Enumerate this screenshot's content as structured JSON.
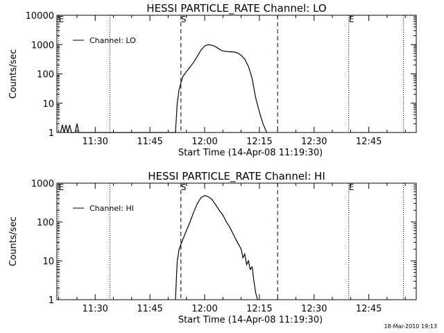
{
  "footer": {
    "timestamp": "18-Mar-2010 19:13"
  },
  "chart_data": [
    {
      "type": "line",
      "title": "HESSI PARTICLE_RATE Channel: LO",
      "xlabel": "Start Time (14-Apr-08 11:19:30)",
      "ylabel": "Counts/sec",
      "yscale": "log",
      "xlim": [
        "11:19:30",
        "12:58:00"
      ],
      "ylim": [
        1,
        10000
      ],
      "xticks": [
        "11:30",
        "11:45",
        "12:00",
        "12:15",
        "12:30",
        "12:45"
      ],
      "yticks": [
        "1",
        "10",
        "100",
        "1000",
        "10000"
      ],
      "grid": false,
      "legend": {
        "position": "top-left",
        "entries": [
          "Channel: LO"
        ]
      },
      "markers": [
        {
          "time": "11:20:00",
          "style": "dotted",
          "label": "E"
        },
        {
          "time": "11:34:00",
          "style": "dotted",
          "label": ""
        },
        {
          "time": "11:53:30",
          "style": "dashed",
          "label": "S"
        },
        {
          "time": "12:20:00",
          "style": "dashed",
          "label": ""
        },
        {
          "time": "12:39:30",
          "style": "dotted",
          "label": "E"
        },
        {
          "time": "12:54:30",
          "style": "dotted",
          "label": ""
        }
      ],
      "series": [
        {
          "name": "Channel: LO",
          "points": [
            [
              "11:20:30",
              1
            ],
            [
              "11:21:00",
              1.8
            ],
            [
              "11:21:30",
              1
            ],
            [
              "11:22:00",
              1.8
            ],
            [
              "11:22:30",
              1
            ],
            [
              "11:23:00",
              1.8
            ],
            [
              "11:23:30",
              1
            ],
            [
              "11:24:30",
              1
            ],
            [
              "11:25:00",
              2
            ],
            [
              "11:25:30",
              1
            ],
            [
              "11:52:00",
              1
            ],
            [
              "11:52:30",
              10
            ],
            [
              "11:53:00",
              30
            ],
            [
              "11:54:00",
              80
            ],
            [
              "11:55:00",
              120
            ],
            [
              "11:56:00",
              170
            ],
            [
              "11:57:00",
              250
            ],
            [
              "11:58:00",
              400
            ],
            [
              "11:59:00",
              650
            ],
            [
              "12:00:00",
              900
            ],
            [
              "12:01:00",
              1000
            ],
            [
              "12:02:00",
              950
            ],
            [
              "12:03:00",
              850
            ],
            [
              "12:04:00",
              700
            ],
            [
              "12:05:00",
              600
            ],
            [
              "12:06:00",
              580
            ],
            [
              "12:07:00",
              570
            ],
            [
              "12:08:00",
              560
            ],
            [
              "12:09:00",
              520
            ],
            [
              "12:10:00",
              430
            ],
            [
              "12:11:00",
              320
            ],
            [
              "12:12:00",
              180
            ],
            [
              "12:13:00",
              70
            ],
            [
              "12:14:00",
              15
            ],
            [
              "12:15:00",
              5
            ],
            [
              "12:16:00",
              2
            ],
            [
              "12:17:00",
              1
            ]
          ]
        }
      ]
    },
    {
      "type": "line",
      "title": "HESSI PARTICLE_RATE Channel: HI",
      "xlabel": "Start Time (14-Apr-08 11:19:30)",
      "ylabel": "Counts/sec",
      "yscale": "log",
      "xlim": [
        "11:19:30",
        "12:58:00"
      ],
      "ylim": [
        1,
        1000
      ],
      "xticks": [
        "11:30",
        "11:45",
        "12:00",
        "12:15",
        "12:30",
        "12:45"
      ],
      "yticks": [
        "1",
        "10",
        "100",
        "1000"
      ],
      "grid": false,
      "legend": {
        "position": "top-left",
        "entries": [
          "Channel: HI"
        ]
      },
      "markers": [
        {
          "time": "11:20:00",
          "style": "dotted",
          "label": "E"
        },
        {
          "time": "11:34:00",
          "style": "dotted",
          "label": ""
        },
        {
          "time": "11:53:30",
          "style": "dashed",
          "label": "S"
        },
        {
          "time": "12:20:00",
          "style": "dashed",
          "label": ""
        },
        {
          "time": "12:39:30",
          "style": "dotted",
          "label": "E"
        },
        {
          "time": "12:54:30",
          "style": "dotted",
          "label": ""
        }
      ],
      "series": [
        {
          "name": "Channel: HI",
          "points": [
            [
              "11:52:00",
              1
            ],
            [
              "11:52:30",
              10
            ],
            [
              "11:53:00",
              20
            ],
            [
              "11:54:00",
              35
            ],
            [
              "11:55:00",
              60
            ],
            [
              "11:56:00",
              100
            ],
            [
              "11:57:00",
              180
            ],
            [
              "11:58:00",
              300
            ],
            [
              "11:59:00",
              420
            ],
            [
              "12:00:00",
              480
            ],
            [
              "12:01:00",
              450
            ],
            [
              "12:02:00",
              380
            ],
            [
              "12:03:00",
              280
            ],
            [
              "12:04:00",
              200
            ],
            [
              "12:05:00",
              150
            ],
            [
              "12:06:00",
              100
            ],
            [
              "12:07:00",
              70
            ],
            [
              "12:08:00",
              45
            ],
            [
              "12:09:00",
              30
            ],
            [
              "12:10:00",
              20
            ],
            [
              "12:10:30",
              12
            ],
            [
              "12:11:00",
              15
            ],
            [
              "12:11:30",
              8
            ],
            [
              "12:12:00",
              10
            ],
            [
              "12:12:30",
              6
            ],
            [
              "12:13:00",
              7
            ],
            [
              "12:13:30",
              3
            ],
            [
              "12:14:00",
              1.5
            ],
            [
              "12:14:30",
              1
            ]
          ]
        }
      ]
    }
  ]
}
